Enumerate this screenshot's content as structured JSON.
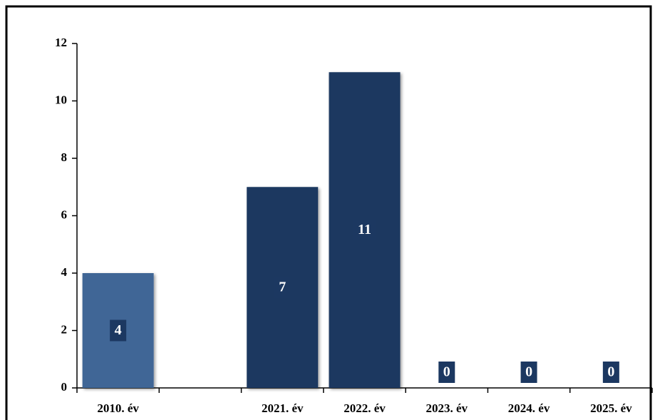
{
  "chart_data": {
    "type": "bar",
    "categories": [
      "2010. év",
      null,
      "2021. év",
      "2022. év",
      "2023. év",
      "2024. év",
      "2025. év"
    ],
    "values": [
      4,
      null,
      7,
      11,
      0,
      0,
      0
    ],
    "colors": [
      "#3f6696",
      "#1c3861",
      "#1c3861",
      "#1c3861",
      "#1c3861",
      "#1c3861",
      "#1c3861"
    ],
    "label_color": "#1c3861",
    "ylim": [
      0,
      12
    ],
    "yticks": [
      0,
      2,
      4,
      6,
      8,
      10,
      12
    ]
  }
}
